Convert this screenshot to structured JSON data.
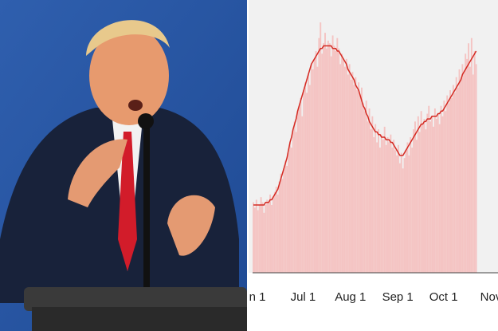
{
  "chart_data": {
    "type": "bar",
    "categories": [
      "n 1",
      null,
      null,
      null,
      null,
      null,
      null,
      null,
      null,
      null,
      null,
      null,
      null,
      null,
      null,
      null,
      null,
      null,
      null,
      null,
      null,
      null,
      null,
      null,
      null,
      null,
      null,
      null,
      null,
      null,
      "Jul 1",
      null,
      null,
      null,
      null,
      null,
      null,
      null,
      null,
      null,
      null,
      null,
      null,
      null,
      null,
      null,
      null,
      null,
      null,
      null,
      null,
      null,
      null,
      null,
      null,
      null,
      null,
      null,
      null,
      null,
      null,
      "Aug 1",
      null,
      null,
      null,
      null,
      null,
      null,
      null,
      null,
      null,
      null,
      null,
      null,
      null,
      null,
      null,
      null,
      null,
      null,
      null,
      null,
      null,
      null,
      null,
      null,
      null,
      null,
      null,
      null,
      null,
      null,
      "Sep 1",
      null,
      null,
      null,
      null,
      null,
      null,
      null,
      null,
      null,
      null,
      null,
      null,
      null,
      null,
      null,
      null,
      null,
      null,
      null,
      null,
      null,
      null,
      null,
      null,
      null,
      null,
      null,
      null,
      null,
      "Oct 1",
      null,
      null,
      null,
      null,
      null,
      null,
      null,
      null,
      null,
      null,
      null,
      null,
      null,
      null,
      null,
      null,
      null,
      null,
      null,
      null,
      null,
      null,
      null,
      null,
      null,
      null,
      null,
      null,
      null,
      null,
      "Nov"
    ],
    "ylim": [
      0,
      100
    ],
    "series": [
      {
        "type": "bar",
        "color": "#f4c4c3",
        "values": [
          27,
          25,
          28,
          24,
          26,
          29,
          27,
          23,
          26,
          28,
          27,
          30,
          26,
          29,
          31,
          33,
          30,
          35,
          38,
          36,
          40,
          43,
          41,
          46,
          50,
          48,
          55,
          58,
          54,
          62,
          64,
          67,
          60,
          70,
          73,
          69,
          76,
          72,
          80,
          78,
          82,
          85,
          79,
          90,
          96,
          84,
          88,
          92,
          86,
          89,
          88,
          83,
          91,
          87,
          85,
          90,
          86,
          80,
          84,
          82,
          79,
          82,
          76,
          80,
          74,
          77,
          72,
          75,
          70,
          73,
          68,
          71,
          65,
          62,
          66,
          58,
          63,
          55,
          60,
          52,
          57,
          50,
          55,
          48,
          53,
          51,
          56,
          49,
          52,
          50,
          53,
          48,
          51,
          47,
          45,
          49,
          42,
          46,
          40,
          44,
          47,
          50,
          45,
          52,
          48,
          55,
          58,
          51,
          60,
          54,
          62,
          57,
          59,
          55,
          61,
          64,
          58,
          60,
          56,
          63,
          59,
          61,
          57,
          64,
          60,
          66,
          62,
          68,
          65,
          70,
          67,
          72,
          69,
          75,
          71,
          78,
          74,
          80,
          77,
          84,
          82,
          88,
          79,
          90,
          76,
          85,
          80,
          null,
          null,
          null,
          null,
          null,
          null,
          null
        ]
      },
      {
        "type": "line",
        "color": "#d42a22",
        "values": [
          26,
          26,
          26,
          26,
          26,
          26,
          26,
          26,
          27,
          27,
          27,
          28,
          28,
          29,
          30,
          31,
          32,
          34,
          36,
          38,
          40,
          42,
          44,
          47,
          50,
          52,
          55,
          57,
          59,
          62,
          64,
          66,
          68,
          70,
          72,
          74,
          76,
          78,
          80,
          81,
          82,
          83,
          84,
          85,
          86,
          86,
          87,
          87,
          87,
          87,
          87,
          87,
          86,
          86,
          86,
          85,
          85,
          84,
          83,
          82,
          81,
          80,
          78,
          77,
          76,
          75,
          74,
          72,
          71,
          70,
          68,
          66,
          64,
          63,
          61,
          60,
          58,
          57,
          56,
          55,
          54,
          54,
          53,
          53,
          52,
          52,
          52,
          51,
          51,
          51,
          50,
          50,
          49,
          48,
          47,
          46,
          45,
          45,
          45,
          46,
          47,
          48,
          49,
          50,
          51,
          52,
          53,
          54,
          55,
          56,
          57,
          57,
          58,
          58,
          59,
          59,
          59,
          60,
          60,
          60,
          60,
          61,
          61,
          62,
          62,
          63,
          64,
          65,
          66,
          67,
          68,
          69,
          70,
          71,
          72,
          73,
          74,
          76,
          77,
          78,
          79,
          80,
          81,
          82,
          83,
          84,
          85,
          null,
          null,
          null,
          null,
          null,
          null,
          null
        ]
      }
    ]
  }
}
